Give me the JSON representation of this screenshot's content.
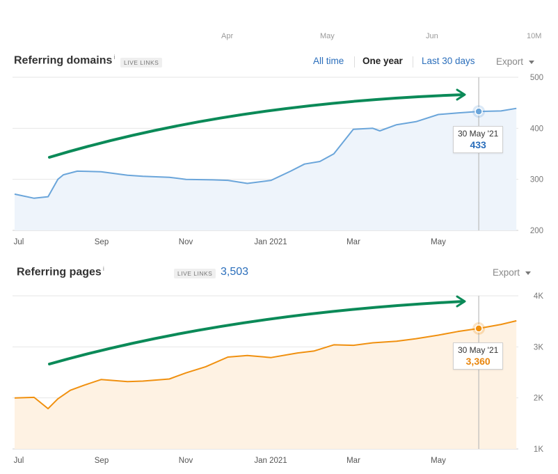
{
  "top_axis": {
    "ticks": [
      "Apr",
      "May",
      "Jun",
      "10M"
    ]
  },
  "domains_panel": {
    "title": "Referring domains",
    "info_icon": "i",
    "badge": "LIVE LINKS",
    "ranges": [
      "All time",
      "One year",
      "Last 30 days"
    ],
    "active_range": "One year",
    "export_label": "Export",
    "tooltip": {
      "date": "30 May '21",
      "value": "433"
    }
  },
  "pages_panel": {
    "title": "Referring pages",
    "info_icon": "i",
    "badge": "LIVE LINKS",
    "total": "3,503",
    "export_label": "Export",
    "tooltip": {
      "date": "30 May '21",
      "value": "3,360"
    }
  },
  "colors": {
    "domains_line": "#6aa5da",
    "domains_fill": "#eef4fb",
    "pages_line": "#f0900f",
    "pages_fill": "#fef2e3",
    "annotation_arrow": "#0b8a58",
    "grid": "#e6e6e6",
    "crosshair": "#bbbbbb"
  },
  "chart_data": [
    {
      "type": "area",
      "title": "Referring domains",
      "x_tick_labels": [
        "Jul",
        "Sep",
        "Nov",
        "Jan 2021",
        "Mar",
        "May"
      ],
      "y_tick_labels": [
        "200",
        "300",
        "400",
        "500"
      ],
      "ylim": [
        200,
        500
      ],
      "grid": true,
      "legend": "none",
      "series": [
        {
          "x": [
            "2020-07-01",
            "2020-07-15",
            "2020-07-25",
            "2020-08-01",
            "2020-08-05",
            "2020-08-15",
            "2020-09-01",
            "2020-09-20",
            "2020-10-01",
            "2020-10-20",
            "2020-11-01",
            "2020-11-20",
            "2020-12-01",
            "2020-12-15",
            "2021-01-01",
            "2021-01-15",
            "2021-01-25",
            "2021-02-05",
            "2021-02-15",
            "2021-03-01",
            "2021-03-15",
            "2021-03-20",
            "2021-04-01",
            "2021-04-15",
            "2021-05-01",
            "2021-05-15",
            "2021-05-30",
            "2021-06-15",
            "2021-06-26"
          ],
          "values": [
            271,
            263,
            266,
            300,
            309,
            316,
            315,
            308,
            306,
            304,
            300,
            299,
            298,
            292,
            298,
            316,
            330,
            335,
            350,
            398,
            400,
            395,
            407,
            413,
            427,
            430,
            433,
            434,
            439
          ]
        }
      ],
      "annotation": {
        "date": "30 May '21",
        "value": 433
      }
    },
    {
      "type": "area",
      "title": "Referring pages",
      "x_tick_labels": [
        "Jul",
        "Sep",
        "Nov",
        "Jan 2021",
        "Mar",
        "May"
      ],
      "y_tick_labels": [
        "1K",
        "2K",
        "3K",
        "4K"
      ],
      "ylim": [
        1000,
        4000
      ],
      "grid": true,
      "legend": "none",
      "series": [
        {
          "x": [
            "2020-07-01",
            "2020-07-15",
            "2020-07-25",
            "2020-08-01",
            "2020-08-10",
            "2020-08-20",
            "2020-09-01",
            "2020-09-20",
            "2020-10-01",
            "2020-10-20",
            "2020-11-01",
            "2020-11-15",
            "2020-12-01",
            "2020-12-15",
            "2021-01-01",
            "2021-01-20",
            "2021-02-01",
            "2021-02-15",
            "2021-03-01",
            "2021-03-15",
            "2021-04-01",
            "2021-04-15",
            "2021-05-01",
            "2021-05-15",
            "2021-05-30",
            "2021-06-15",
            "2021-06-26"
          ],
          "values": [
            2000,
            2010,
            1790,
            1980,
            2150,
            2250,
            2360,
            2320,
            2330,
            2370,
            2490,
            2610,
            2800,
            2830,
            2790,
            2880,
            2920,
            3040,
            3030,
            3080,
            3110,
            3160,
            3230,
            3300,
            3360,
            3440,
            3510
          ]
        }
      ],
      "annotation": {
        "date": "30 May '21",
        "value": 3360
      }
    }
  ]
}
